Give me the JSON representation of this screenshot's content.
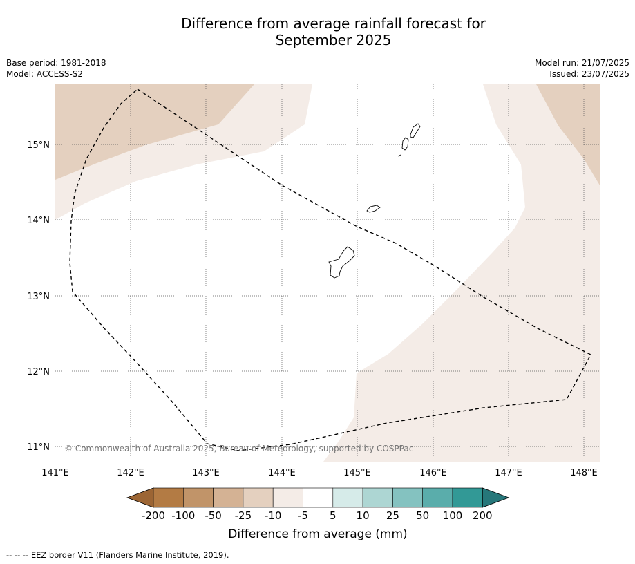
{
  "title": {
    "line1": "Difference from average rainfall forecast for",
    "line2": "September 2025"
  },
  "info_left": {
    "base_period": "Base period: 1981-2018",
    "model": "Model: ACCESS-S2"
  },
  "info_right": {
    "model_run": "Model run: 21/07/2025",
    "issued": "Issued: 23/07/2025"
  },
  "map": {
    "lon_ticks": [
      "141°E",
      "142°E",
      "143°E",
      "144°E",
      "145°E",
      "146°E",
      "147°E",
      "148°E"
    ],
    "lat_ticks": [
      "15°N",
      "14°N",
      "13°N",
      "12°N",
      "11°N"
    ],
    "copyright": "© Commonwealth of Australia 2025, Bureau of Meteorology, supported by COSPPac",
    "features": [
      "Guam",
      "Rota",
      "Tinian",
      "Saipan",
      "EEZ border"
    ]
  },
  "colorbar": {
    "tick_labels": [
      "-200",
      "-100",
      "-50",
      "-25",
      "-10",
      "-5",
      "5",
      "10",
      "25",
      "50",
      "100",
      "200"
    ],
    "colors": [
      "#9c6534",
      "#b37b44",
      "#c19469",
      "#d4b294",
      "#e4d0bf",
      "#f4ece7",
      "#ffffff",
      "#d6ebe9",
      "#add6d3",
      "#84c2c0",
      "#5aadab",
      "#329996",
      "#26777a"
    ],
    "label": "Difference from average (mm)"
  },
  "footer": "--  --  -- EEZ border V11 (Flanders Marine Institute, 2019)."
}
